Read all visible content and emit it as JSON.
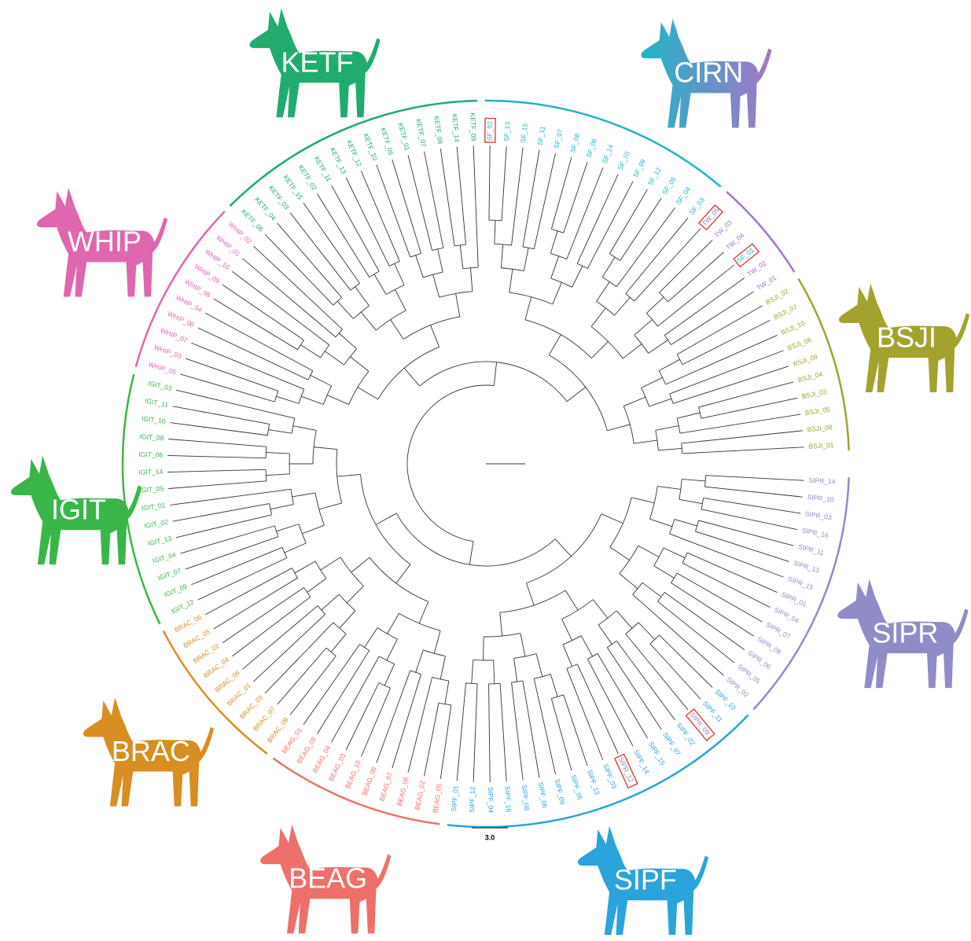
{
  "clades": [
    {
      "name": "BSJI",
      "segments": [
        {
          "color": "#a3a22f",
          "leaves": [
            "BSJI_01",
            "BSJI_08",
            "BSJI_05",
            "BSJI_03",
            "BSJI_04",
            "BSJI_09",
            "BSJI_06",
            "BSJI_10",
            "BSJI_07",
            "BSJI_02"
          ]
        }
      ]
    },
    {
      "name": "CIRN",
      "segments": [
        {
          "color": "#a476c8",
          "leaves": [
            "TW_01",
            "TW_02",
            {
              "label": "SF_01",
              "color": "#1fb5c6",
              "boxed": true
            },
            "TW_04",
            "TW_03",
            {
              "label": "TW_05",
              "boxed": true
            }
          ]
        },
        {
          "color": "#1fb5c6",
          "leaves": [
            "SF_03",
            "SF_04",
            "SF_05",
            "SF_12",
            "SF_09",
            "SF_10",
            "SF_14",
            "SF_06",
            "SF_08",
            "SF_07",
            "SF_11",
            "SF_15",
            "SF_13",
            {
              "label": "SF_02",
              "boxed": true
            }
          ]
        }
      ]
    },
    {
      "name": "KETF",
      "segments": [
        {
          "color": "#22ab6f",
          "leaves": [
            "KETF_09",
            "KETF_14",
            "KETF_08",
            "KETF_07",
            "KETF_01",
            "KETF_05",
            "KETF_10",
            "KETF_12",
            "KETF_13",
            "KETF_11",
            "KETF_02",
            "KETF_15",
            "KETF_03",
            "KETF_04",
            "KETF_06"
          ]
        }
      ]
    },
    {
      "name": "WHIP",
      "segments": [
        {
          "color": "#e066b0",
          "leaves": [
            "WHIP_02",
            "WHIP_01",
            "WHIP_10",
            "WHIP_09",
            "WHIP_08",
            "WHIP_04",
            "WHIP_06",
            "WHIP_07",
            "WHIP_03",
            "WHIP_05"
          ]
        }
      ]
    },
    {
      "name": "IGIT",
      "segments": [
        {
          "color": "#3ab54a",
          "leaves": [
            "IGIT_03",
            "IGIT_11",
            "IGIT_10",
            "IGIT_08",
            "IGIT_06",
            "IGIT_14",
            "IGIT_05",
            "IGIT_01",
            "IGIT_02",
            "IGIT_13",
            "IGIT_04",
            "IGIT_07",
            "IGIT_09",
            "IGIT_12"
          ]
        }
      ]
    },
    {
      "name": "BRAC",
      "segments": [
        {
          "color": "#d88e22",
          "leaves": [
            "BRAC_06",
            "BRAC_05",
            "BRAC_02",
            "BRAC_04",
            "BRAC_08",
            "BRAC_01",
            "BRAC_03",
            "BRAC_07",
            "BRAC_09"
          ]
        }
      ]
    },
    {
      "name": "BEAG",
      "segments": [
        {
          "color": "#ef6f6a",
          "leaves": [
            "BEAG_01",
            "BEAG_09",
            "BEAG_04",
            "BEAG_03",
            "BEAG_10",
            "BEAG_08",
            "BEAG_07",
            "BEAG_06",
            "BEAG_02",
            "BEAG_05"
          ]
        }
      ]
    },
    {
      "name": "SIPF",
      "segments": [
        {
          "color": "#2ba3dc",
          "leaves": [
            "SIPF_01",
            "SIPF_12",
            "SIPF_04",
            "SIPF_16",
            "SIPF_08",
            "SIPF_06",
            "SIPF_09",
            "SIPF_05",
            "SIPF_13",
            "SIPF_03",
            {
              "label": "SIPR_12",
              "color": "#8f8cc8",
              "boxed": true
            },
            "SIPF_14",
            "SIPF_15",
            "SIPF_07",
            "SIPF_02",
            {
              "label": "SIPR_09",
              "color": "#8f8cc8",
              "boxed": true
            },
            "SIPF_11",
            "SIPF_10"
          ]
        }
      ]
    },
    {
      "name": "SIPR",
      "segments": [
        {
          "color": "#8f8cc8",
          "leaves": [
            "SIPR_02",
            "SIPR_05",
            "SIPR_06",
            "SIPR_08",
            "SIPR_07",
            "SIPR_04",
            "SIPR_01",
            "SIPR_15",
            "SIPR_13",
            "SIPR_11",
            "SIPR_16",
            "SIPR_03",
            "SIPR_10",
            "SIPR_14"
          ]
        }
      ]
    }
  ],
  "scale_bar": "3.0"
}
